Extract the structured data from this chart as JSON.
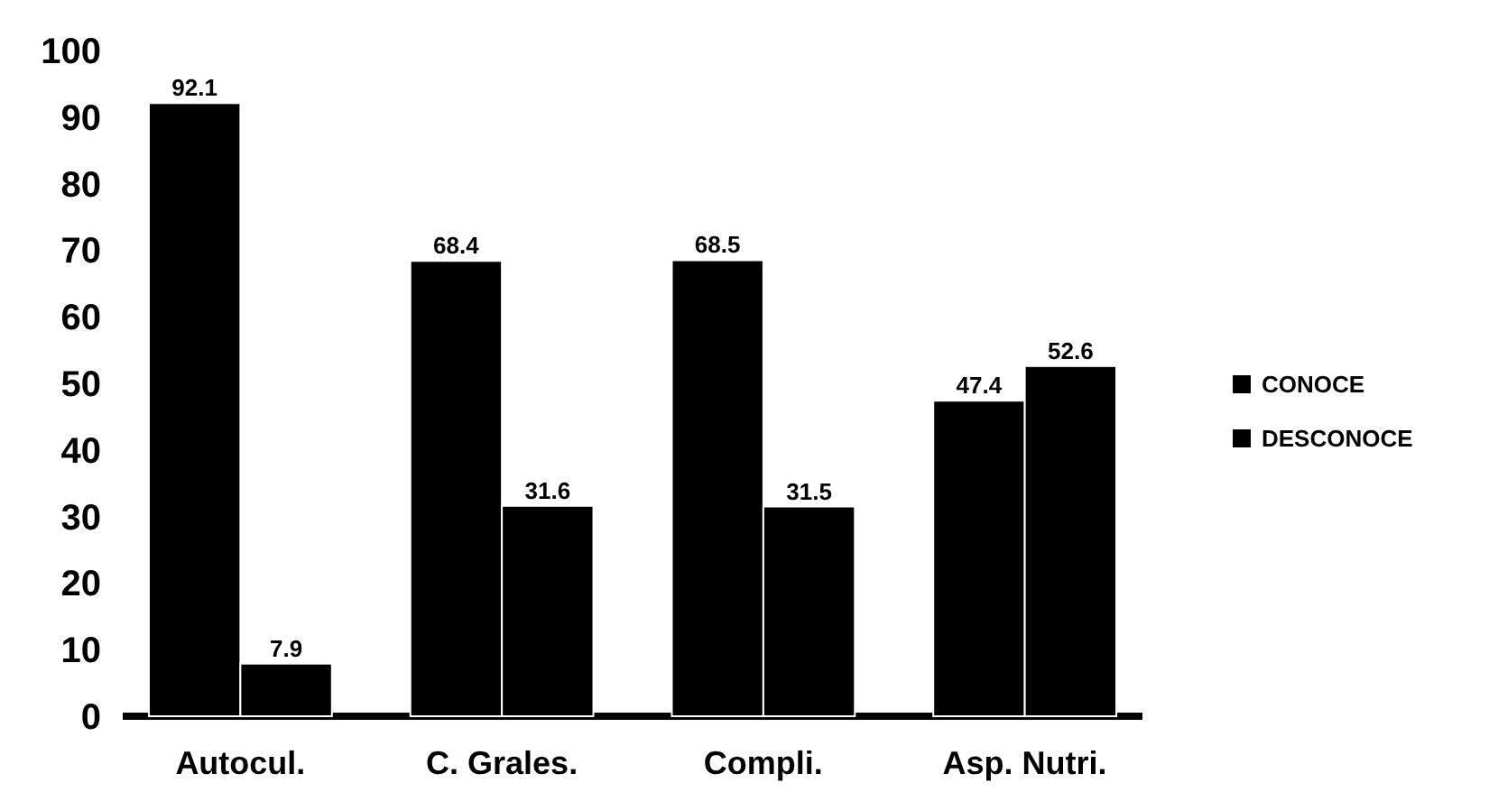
{
  "chart_data": {
    "type": "bar",
    "categories": [
      "Autocul.",
      "C. Grales.",
      "Compli.",
      "Asp. Nutri."
    ],
    "series": [
      {
        "name": "CONOCE",
        "color": "#000000",
        "values": [
          92.1,
          68.4,
          68.5,
          47.4
        ]
      },
      {
        "name": "DESCONOCE",
        "color": "#000000",
        "values": [
          7.9,
          31.6,
          31.5,
          52.6
        ]
      }
    ],
    "ylim": [
      0,
      100
    ],
    "yticks": [
      0,
      10,
      20,
      30,
      40,
      50,
      60,
      70,
      80,
      90,
      100
    ],
    "data_labels": true,
    "legend": "right",
    "grid": false
  }
}
